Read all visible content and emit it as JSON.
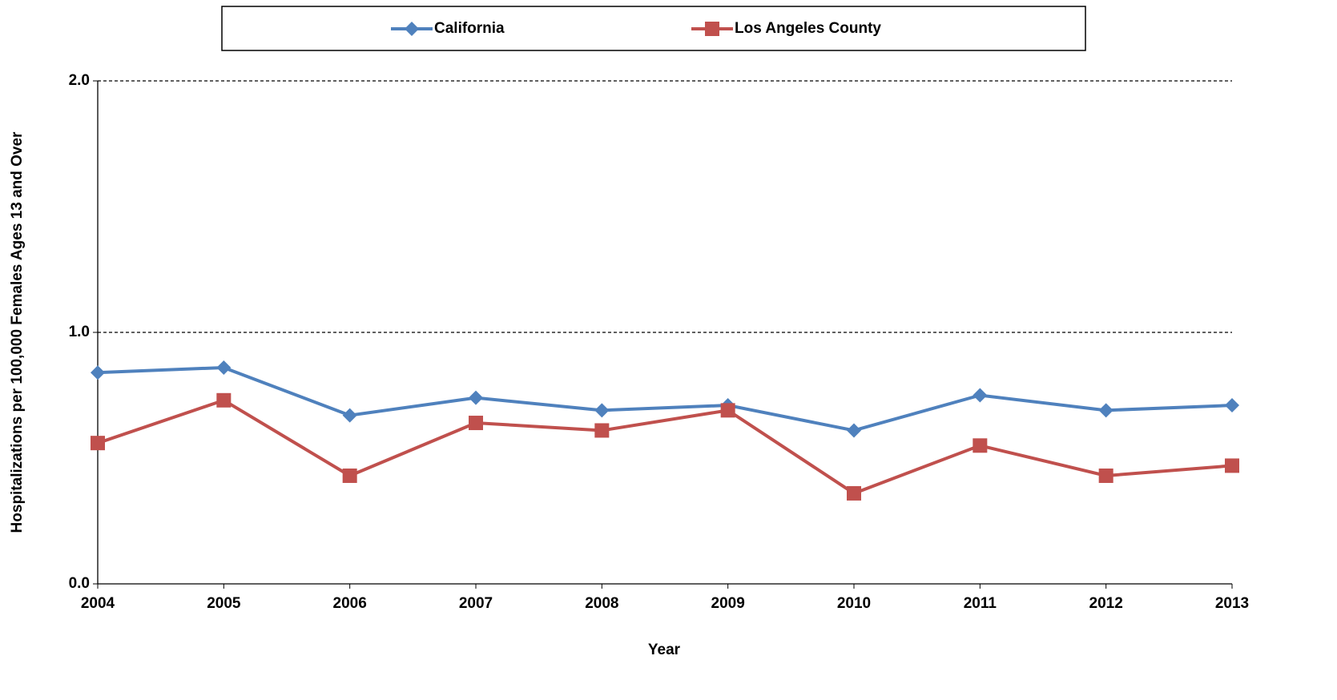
{
  "chart_data": {
    "type": "line",
    "x": [
      2004,
      2005,
      2006,
      2007,
      2008,
      2009,
      2010,
      2011,
      2012,
      2013
    ],
    "xlim": [
      2004,
      2013
    ],
    "xticks": [
      2004,
      2005,
      2006,
      2007,
      2008,
      2009,
      2010,
      2011,
      2012,
      2013
    ],
    "ylim": [
      0,
      2
    ],
    "yticks": [
      {
        "value": 0,
        "label": "0.0"
      },
      {
        "value": 1,
        "label": "1.0"
      },
      {
        "value": 2,
        "label": "2.0"
      }
    ],
    "x_label": "Year",
    "y_label": "Hospitalizations per 100,000 Females Ages 13 and Over",
    "grid": true,
    "legend": "top",
    "series": [
      {
        "name": "California",
        "color": "#4f81bd",
        "marker": "diamond",
        "values": [
          0.84,
          0.86,
          0.67,
          0.74,
          0.69,
          0.71,
          0.61,
          0.75,
          0.69,
          0.71
        ]
      },
      {
        "name": "Los Angeles County",
        "color": "#c0504d",
        "marker": "square",
        "values": [
          0.56,
          0.73,
          0.43,
          0.64,
          0.61,
          0.69,
          0.36,
          0.55,
          0.43,
          0.47
        ]
      }
    ]
  }
}
